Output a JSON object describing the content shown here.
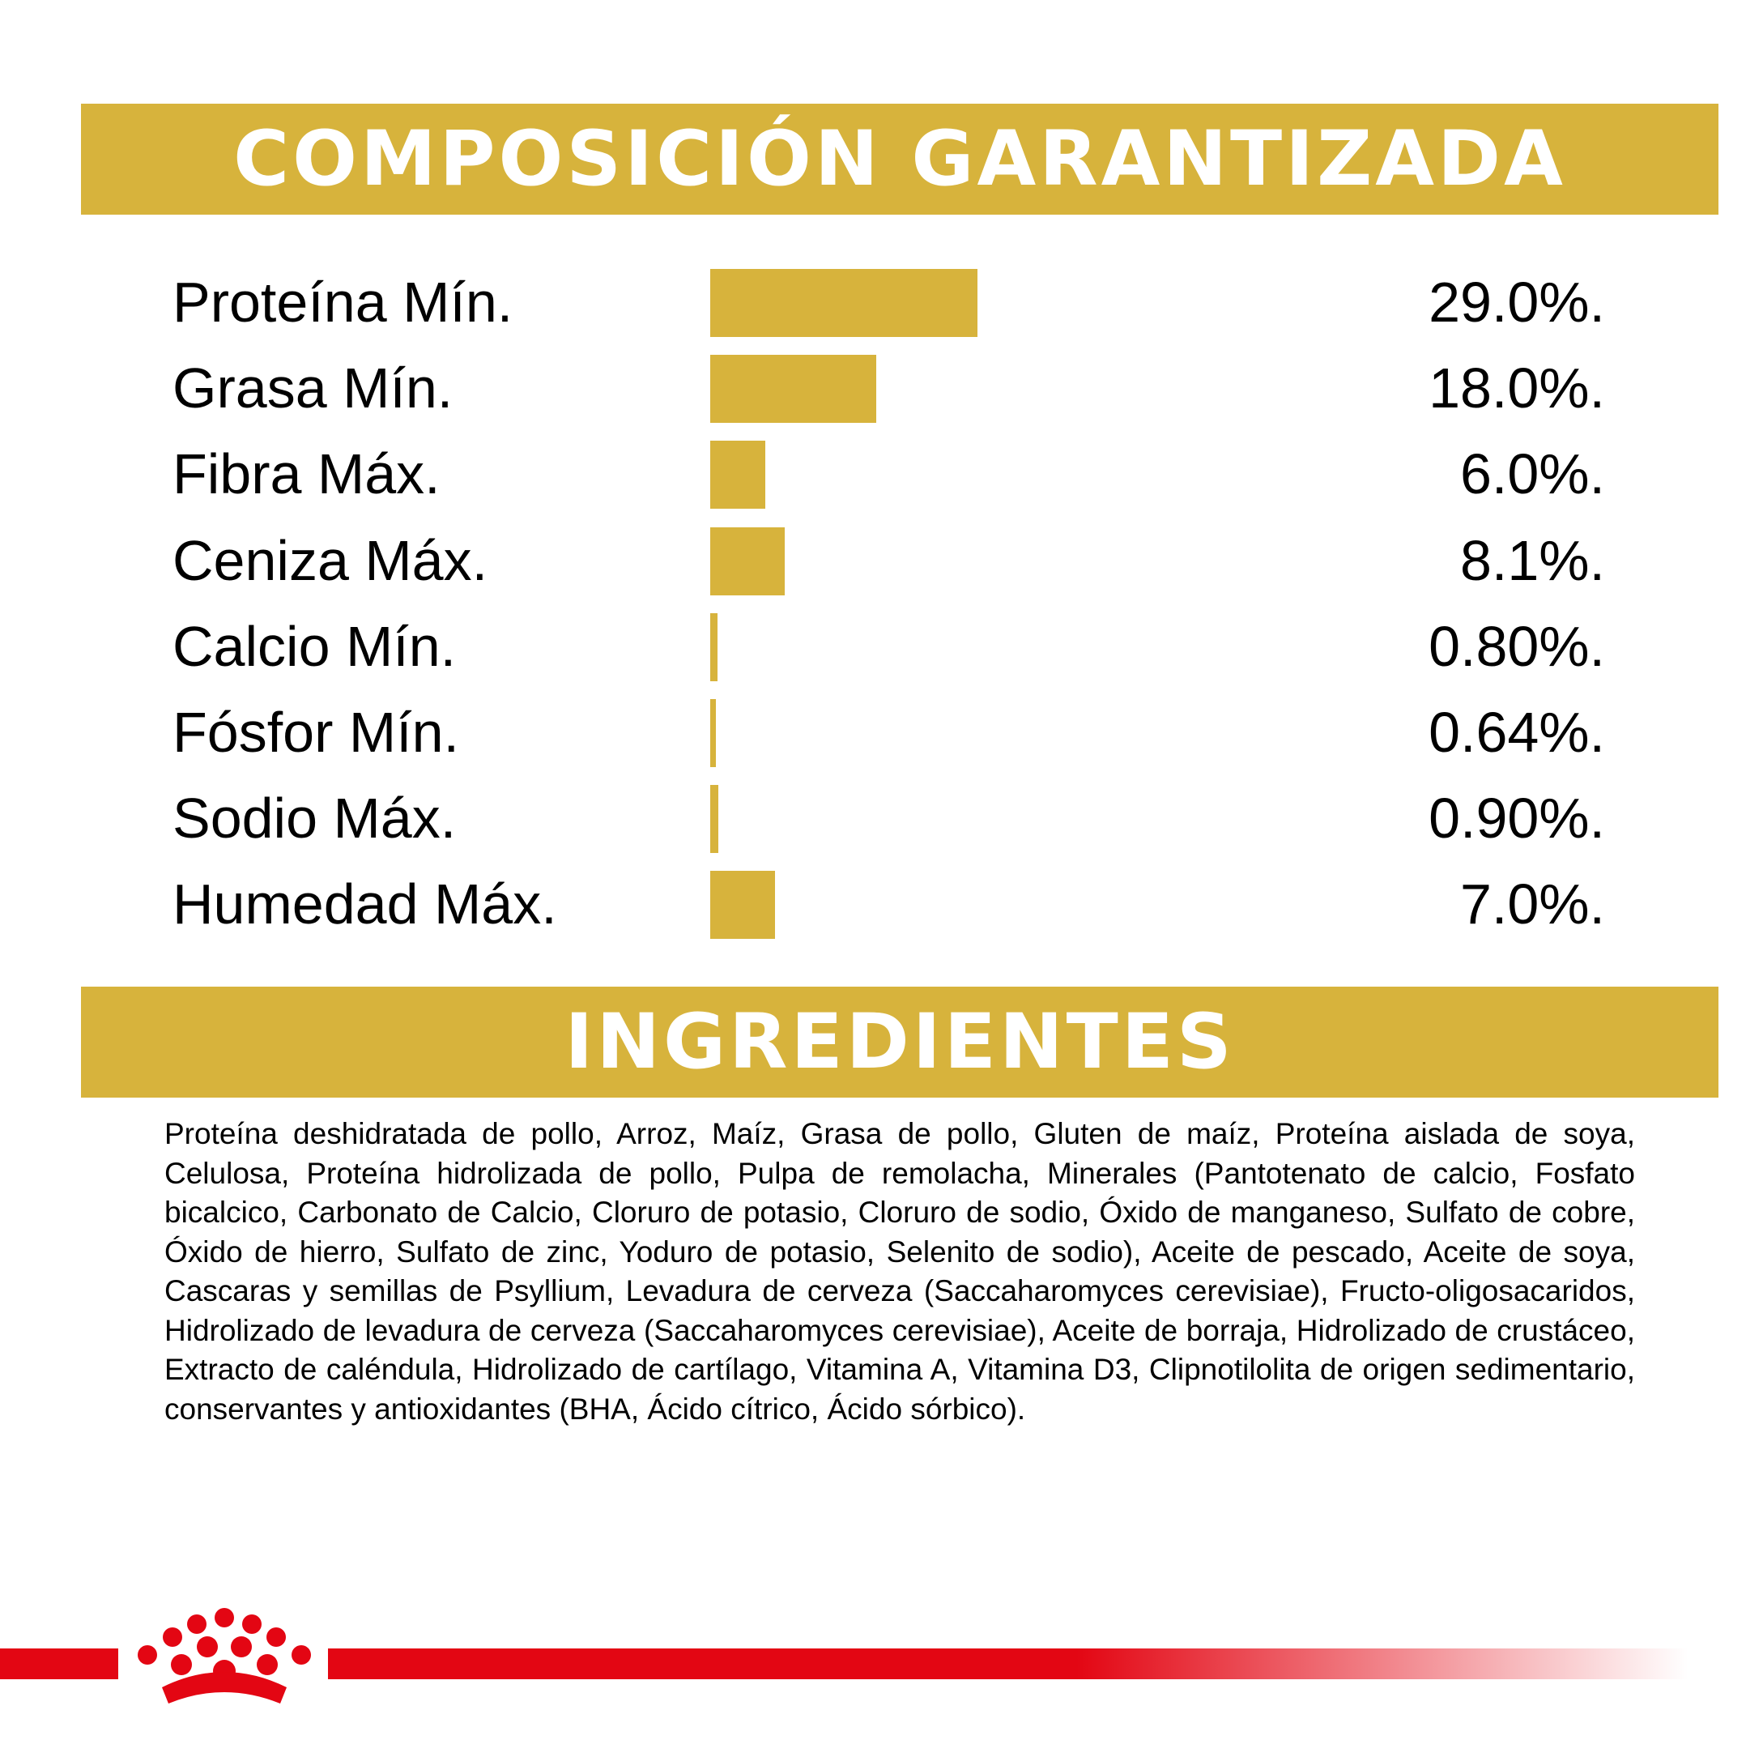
{
  "colors": {
    "gold": "#D7B33C",
    "red": "#E30613",
    "text": "#000000",
    "banner_text": "#FFFFFF"
  },
  "composition": {
    "title": "COMPOSICIÓN GARANTIZADA",
    "nutrients": [
      {
        "label": "Proteína Mín.",
        "value_text": "29.0%.",
        "percent": 29.0
      },
      {
        "label": "Grasa Mín.",
        "value_text": "18.0%.",
        "percent": 18.0
      },
      {
        "label": "Fibra Máx.",
        "value_text": "6.0%.",
        "percent": 6.0
      },
      {
        "label": "Ceniza Máx.",
        "value_text": "8.1%.",
        "percent": 8.1
      },
      {
        "label": "Calcio Mín.",
        "value_text": "0.80%.",
        "percent": 0.8
      },
      {
        "label": "Fósfor Mín.",
        "value_text": "0.64%.",
        "percent": 0.64
      },
      {
        "label": "Sodio Máx.",
        "value_text": "0.90%.",
        "percent": 0.9
      },
      {
        "label": "Humedad Máx.",
        "value_text": "7.0%.",
        "percent": 7.0
      }
    ]
  },
  "ingredients": {
    "title": "INGREDIENTES",
    "text": "Proteína deshidratada de pollo, Arroz, Maíz, Grasa de pollo, Gluten de maíz, Proteína aislada de soya, Celulosa, Proteína hidrolizada de pollo, Pulpa de remolacha, Minerales (Pantotenato de calcio, Fosfato bicalcico, Carbonato de Calcio, Cloruro de potasio, Cloruro de sodio, Óxido de manganeso, Sulfato de cobre, Óxido de hierro, Sulfato de zinc, Yoduro de potasio, Selenito de sodio), Aceite de pescado, Aceite de soya, Cascaras y semillas  de Psyllium, Levadura de cerveza (Saccaharomyces cerevisiae), Fructo-oligosacaridos, Hidrolizado de levadura de cerveza (Saccaharomyces cerevisiae), Aceite de borraja, Hidrolizado de crustáceo, Extracto de caléndula, Hidrolizado de cartílago, Vitamina A, Vitamina D3, Clipnotilolita de origen sedimentario, conservantes y antioxidantes (BHA, Ácido cítrico, Ácido sórbico)."
  },
  "footer": {
    "logo_icon": "royal-canin-crown-icon"
  }
}
